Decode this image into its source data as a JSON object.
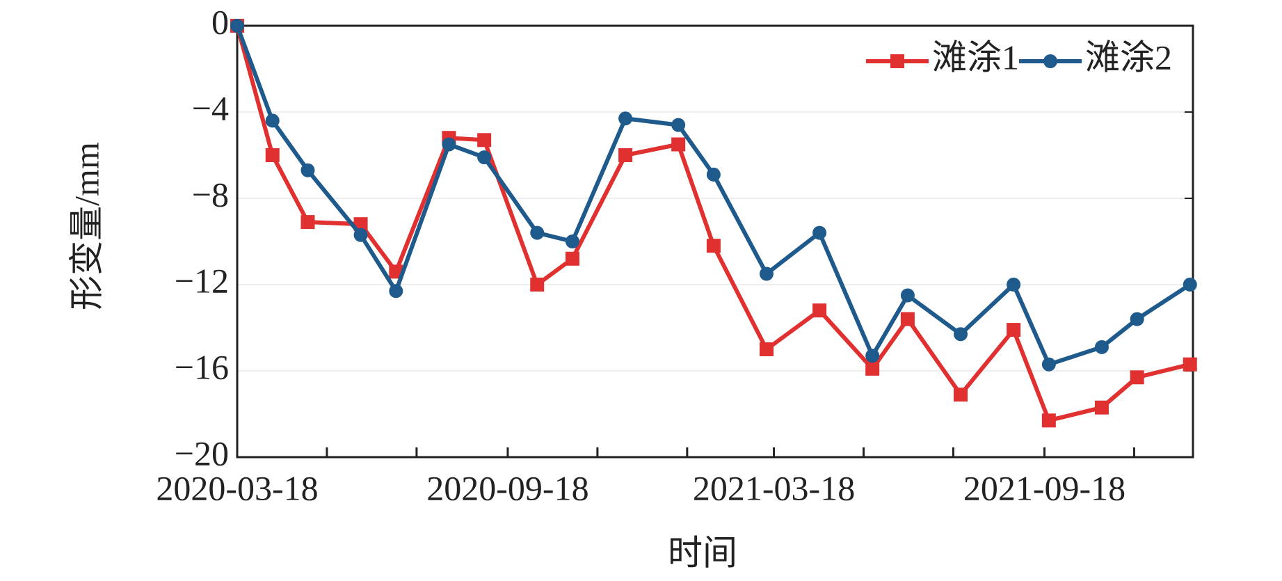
{
  "chart_data": {
    "type": "line",
    "x_label": "时间",
    "y_label": "形变量/mm",
    "x": [
      "2020-03-18",
      "2020-04-11",
      "2020-05-05",
      "2020-06-10",
      "2020-07-04",
      "2020-08-09",
      "2020-09-02",
      "2020-10-08",
      "2020-11-01",
      "2020-12-07",
      "2021-01-12",
      "2021-02-05",
      "2021-03-13",
      "2021-04-18",
      "2021-05-24",
      "2021-06-17",
      "2021-07-23",
      "2021-08-28",
      "2021-09-21",
      "2021-10-27",
      "2021-11-20",
      "2021-12-26"
    ],
    "series": [
      {
        "name": "滩涂1",
        "color": "#e03030",
        "marker": "square",
        "values": [
          0,
          -6.0,
          -9.1,
          -9.2,
          -11.4,
          -5.2,
          -5.3,
          -12.0,
          -10.8,
          -6.0,
          -5.5,
          -10.2,
          -15.0,
          -13.2,
          -15.9,
          -13.6,
          -17.1,
          -14.1,
          -18.3,
          -17.7,
          -16.3,
          -15.7
        ]
      },
      {
        "name": "滩涂2",
        "color": "#1f5a8c",
        "marker": "circle",
        "values": [
          0,
          -4.4,
          -6.7,
          -9.7,
          -12.3,
          -5.5,
          -6.1,
          -9.6,
          -10.0,
          -4.3,
          -4.6,
          -6.9,
          -11.5,
          -9.6,
          -15.3,
          -12.5,
          -14.3,
          -12.0,
          -15.7,
          -14.9,
          -13.6,
          -12.0
        ]
      }
    ],
    "xlim": [
      "2020-03-18",
      "2021-12-28"
    ],
    "xticks": [
      "2020-03-18",
      "2020-09-18",
      "2021-03-18",
      "2021-09-18"
    ],
    "xminorticks": [
      "2020-05-18",
      "2020-07-18",
      "2020-11-18",
      "2021-01-18",
      "2021-05-18",
      "2021-07-18",
      "2021-11-18"
    ],
    "ylim": [
      -20,
      0
    ],
    "yticks": [
      {
        "value": -20,
        "label": "−20"
      },
      {
        "value": -16,
        "label": "−16"
      },
      {
        "value": -12,
        "label": "−12"
      },
      {
        "value": -8,
        "label": "−8"
      },
      {
        "value": -4,
        "label": "−4"
      },
      0
    ],
    "grid": true,
    "legend": "top-right"
  }
}
